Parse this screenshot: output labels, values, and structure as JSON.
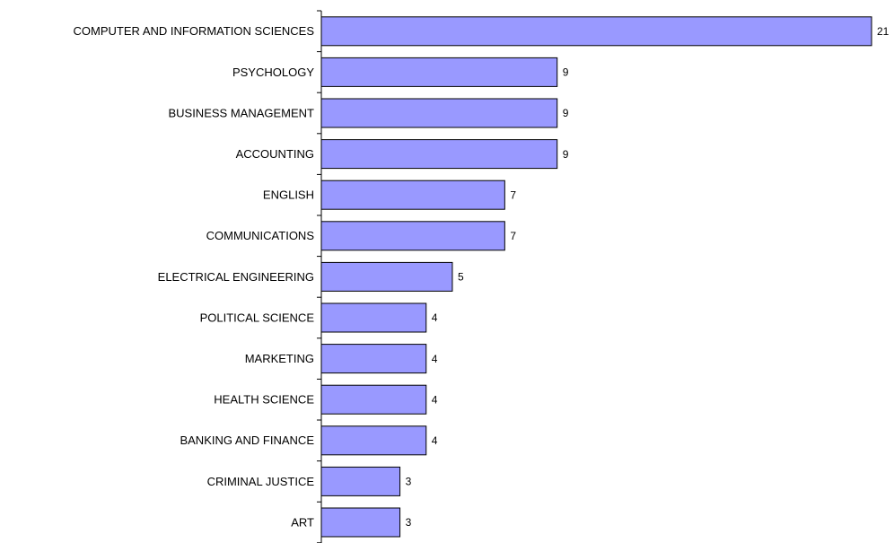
{
  "chart_data": {
    "type": "barh",
    "categories": [
      "COMPUTER AND INFORMATION SCIENCES",
      "PSYCHOLOGY",
      "BUSINESS MANAGEMENT",
      "ACCOUNTING",
      "ENGLISH",
      "COMMUNICATIONS",
      "ELECTRICAL ENGINEERING",
      "POLITICAL SCIENCE",
      "MARKETING",
      "HEALTH SCIENCE",
      "BANKING AND FINANCE",
      "CRIMINAL JUSTICE",
      "ART"
    ],
    "values": [
      21,
      9,
      9,
      9,
      7,
      7,
      5,
      4,
      4,
      4,
      4,
      3,
      3
    ],
    "color": "#9999ff"
  }
}
